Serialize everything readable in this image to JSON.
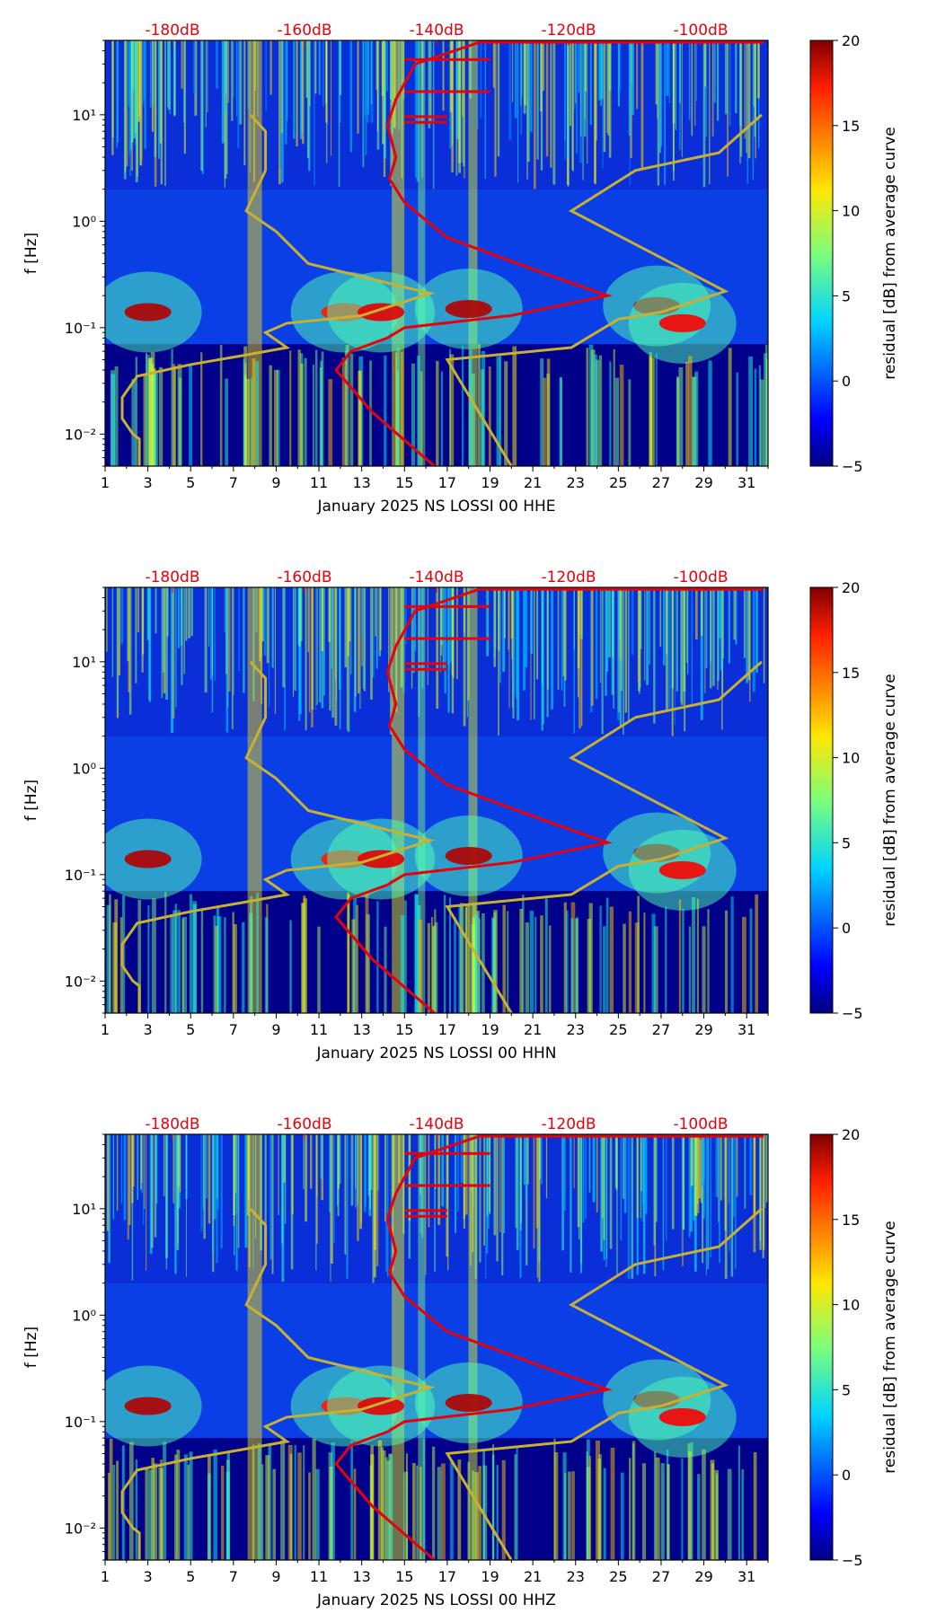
{
  "chart_data": [
    {
      "type": "heatmap",
      "xlabel": "January 2025 NS LOSSI 00 HHE",
      "ylabel": "f [Hz]",
      "x_ticks": [
        "1",
        "3",
        "5",
        "7",
        "9",
        "11",
        "13",
        "15",
        "17",
        "19",
        "21",
        "23",
        "25",
        "27",
        "29",
        "31"
      ],
      "x_range": [
        1,
        32
      ],
      "y_ticks": [
        "10⁻²",
        "10⁻¹",
        "10⁰",
        "10¹"
      ],
      "y_range_hz": [
        0.005,
        50
      ],
      "y_scale": "log",
      "db_ticks": [
        "-180dB",
        "-160dB",
        "-140dB",
        "-120dB",
        "-100dB"
      ],
      "colorbar": {
        "label": "residual [dB] from average curve",
        "ticks": [
          "−5",
          "0",
          "5",
          "10",
          "15",
          "20"
        ],
        "range": [
          -5,
          20
        ],
        "colormap": "jet"
      },
      "reference_curve": {
        "name": "noise model bounds",
        "color": "#c8b030"
      },
      "average_curve": {
        "name": "average PSD",
        "color": "#e8000b"
      }
    },
    {
      "type": "heatmap",
      "xlabel": "January 2025 NS LOSSI 00 HHN",
      "ylabel": "f [Hz]",
      "x_ticks": [
        "1",
        "3",
        "5",
        "7",
        "9",
        "11",
        "13",
        "15",
        "17",
        "19",
        "21",
        "23",
        "25",
        "27",
        "29",
        "31"
      ],
      "x_range": [
        1,
        32
      ],
      "y_ticks": [
        "10⁻²",
        "10⁻¹",
        "10⁰",
        "10¹"
      ],
      "y_range_hz": [
        0.005,
        50
      ],
      "y_scale": "log",
      "db_ticks": [
        "-180dB",
        "-160dB",
        "-140dB",
        "-120dB",
        "-100dB"
      ],
      "colorbar": {
        "label": "residual [dB] from average curve",
        "ticks": [
          "−5",
          "0",
          "5",
          "10",
          "15",
          "20"
        ],
        "range": [
          -5,
          20
        ],
        "colormap": "jet"
      },
      "reference_curve": {
        "name": "noise model bounds",
        "color": "#c8b030"
      },
      "average_curve": {
        "name": "average PSD",
        "color": "#e8000b"
      }
    },
    {
      "type": "heatmap",
      "xlabel": "January 2025 NS LOSSI 00 HHZ",
      "ylabel": "f [Hz]",
      "x_ticks": [
        "1",
        "3",
        "5",
        "7",
        "9",
        "11",
        "13",
        "15",
        "17",
        "19",
        "21",
        "23",
        "25",
        "27",
        "29",
        "31"
      ],
      "x_range": [
        1,
        32
      ],
      "y_ticks": [
        "10⁻²",
        "10⁻¹",
        "10⁰",
        "10¹"
      ],
      "y_range_hz": [
        0.005,
        50
      ],
      "y_scale": "log",
      "db_ticks": [
        "-180dB",
        "-160dB",
        "-140dB",
        "-120dB",
        "-100dB"
      ],
      "colorbar": {
        "label": "residual [dB] from average curve",
        "ticks": [
          "−5",
          "0",
          "5",
          "10",
          "15",
          "20"
        ],
        "range": [
          -5,
          20
        ],
        "colormap": "jet"
      },
      "reference_curve": {
        "name": "noise model bounds",
        "color": "#c8b030"
      },
      "average_curve": {
        "name": "average PSD",
        "color": "#e8000b"
      }
    }
  ]
}
